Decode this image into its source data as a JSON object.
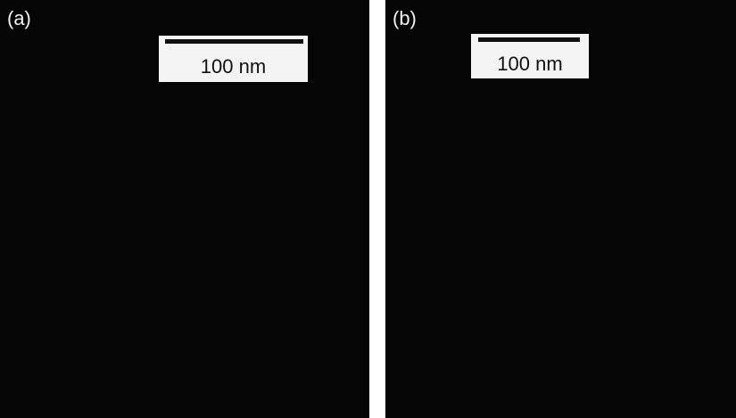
{
  "panels": [
    {
      "label": "(a)",
      "scale_bar": "100 nm"
    },
    {
      "label": "(b)",
      "scale_bar": "100 nm"
    }
  ]
}
